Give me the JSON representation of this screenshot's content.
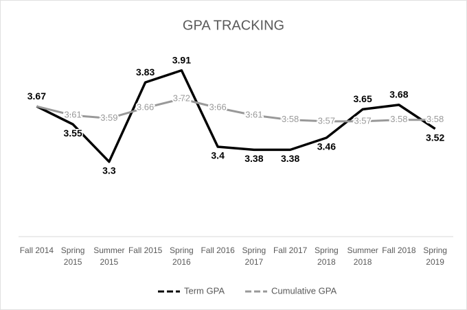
{
  "chart_data": {
    "type": "line",
    "title": "GPA TRACKING",
    "categories": [
      "Fall 2014",
      "Spring 2015",
      "Summer 2015",
      "Fall 2015",
      "Spring 2016",
      "Fall 2016",
      "Spring 2017",
      "Fall 2017",
      "Spring 2018",
      "Summer 2018",
      "Fall 2018",
      "Spring 2019"
    ],
    "series": [
      {
        "name": "Term GPA",
        "color": "#000000",
        "values": [
          3.67,
          3.55,
          3.3,
          3.83,
          3.91,
          3.4,
          3.38,
          3.38,
          3.46,
          3.65,
          3.68,
          3.52
        ]
      },
      {
        "name": "Cumulative GPA",
        "color": "#999999",
        "values": [
          3.67,
          3.61,
          3.59,
          3.66,
          3.72,
          3.66,
          3.61,
          3.58,
          3.57,
          3.57,
          3.58,
          3.58
        ]
      }
    ],
    "ylim": [
      2.8,
      4.0
    ],
    "grid": false,
    "legend": "bottom"
  }
}
